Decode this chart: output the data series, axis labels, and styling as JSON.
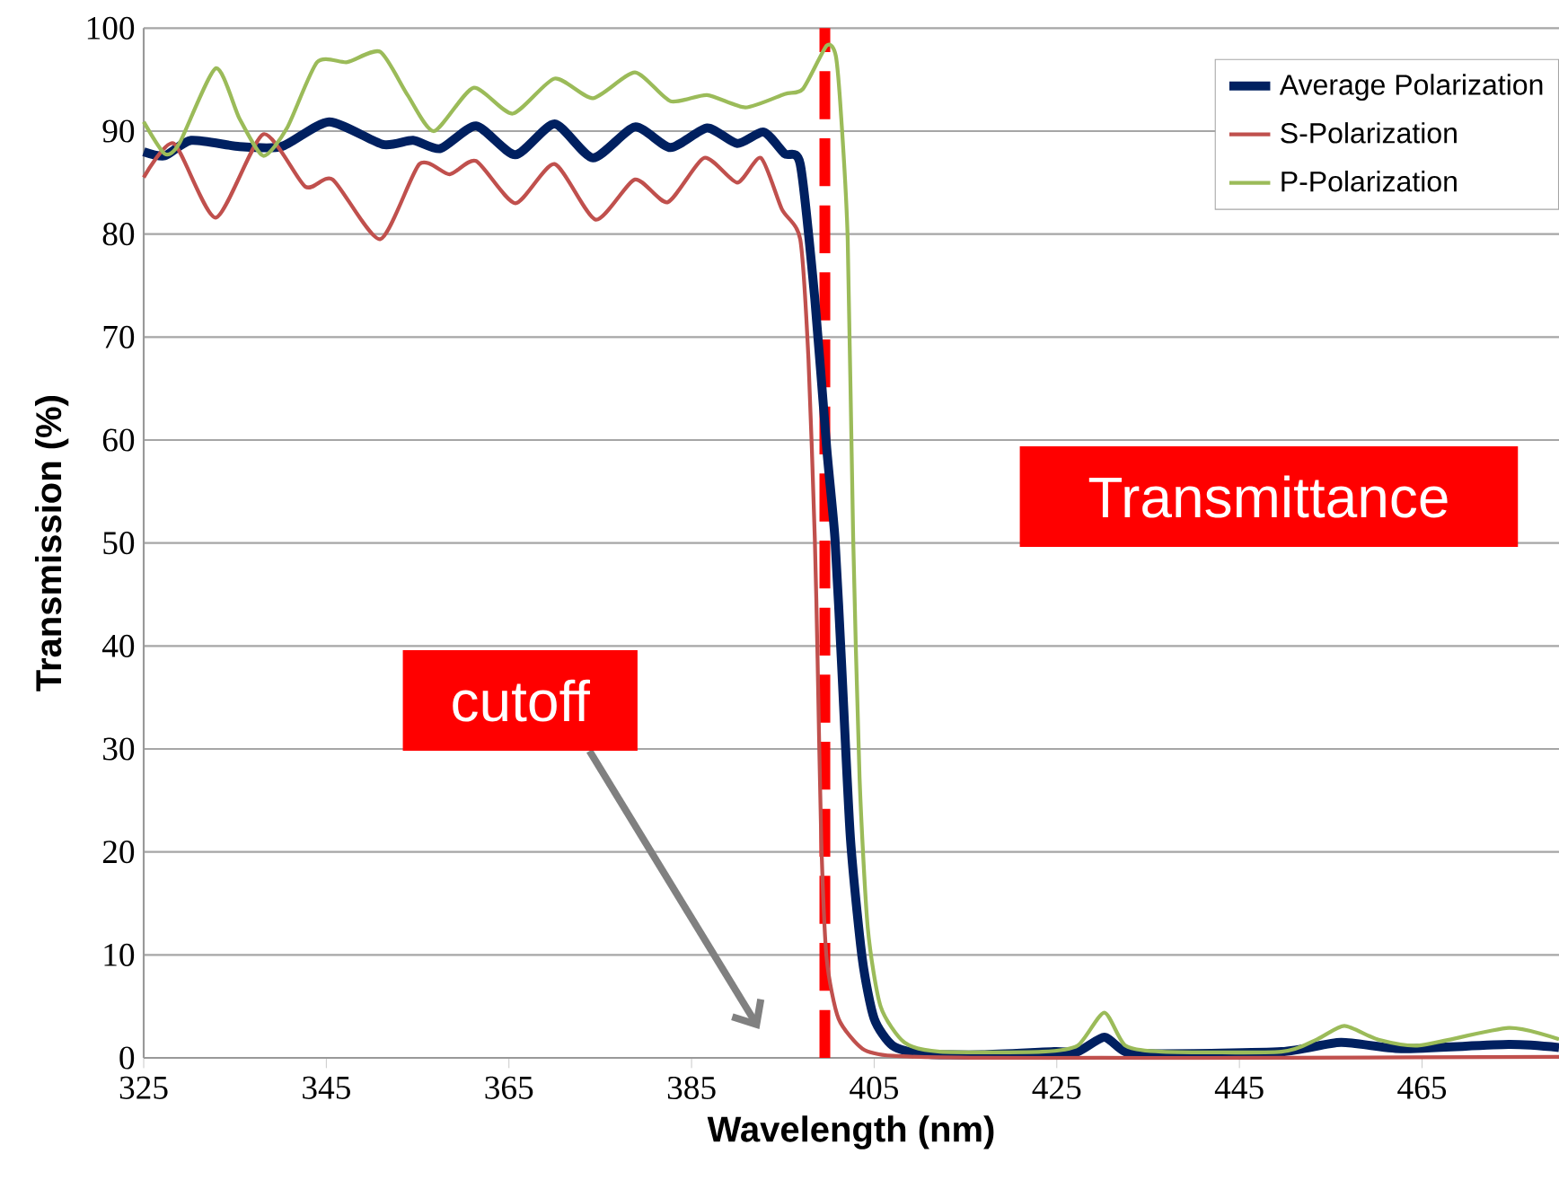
{
  "chart_data": {
    "type": "line",
    "xlabel": "Wavelength (nm)",
    "ylabel": "Transmission (%)",
    "xlim": [
      325,
      480
    ],
    "ylim": [
      0,
      100
    ],
    "xticks": [
      325,
      345,
      365,
      385,
      405,
      425,
      445,
      465
    ],
    "yticks": [
      0,
      10,
      20,
      30,
      40,
      50,
      60,
      70,
      80,
      90,
      100
    ],
    "grid": "y",
    "legend": "top right",
    "series": [
      {
        "name": "Average Polarization",
        "color": "#002060",
        "x": [
          325,
          327.3,
          330.2,
          335.5,
          340.1,
          345.3,
          351.2,
          354.5,
          357.5,
          361.4,
          365.7,
          370,
          374.2,
          378.8,
          382.7,
          386.7,
          390,
          392.9,
          395.2,
          396.9,
          398.5,
          399.8,
          400.7,
          401.4,
          402.4,
          403.7,
          405,
          407,
          410.2,
          416.8,
          424.7,
          427.3,
          430.2,
          432.5,
          436.5,
          449.6,
          456.1,
          462.7,
          474.5,
          480
        ],
        "values": [
          88,
          87.6,
          89.1,
          88.5,
          88.5,
          90.9,
          88.7,
          89.1,
          88.3,
          90.5,
          87.7,
          90.7,
          87.4,
          90.4,
          88.4,
          90.3,
          88.8,
          89.9,
          87.8,
          86.8,
          73.7,
          59.2,
          50.5,
          38.8,
          21.3,
          9.6,
          3.8,
          1.2,
          0.4,
          0.3,
          0.6,
          0.6,
          2,
          0.6,
          0.4,
          0.6,
          1.5,
          0.9,
          1.3,
          1
        ]
      },
      {
        "name": "S-Polarization",
        "color": "#c0504d",
        "x": [
          325,
          328.3,
          332.9,
          338.1,
          342.7,
          345.7,
          350.9,
          355.2,
          358.5,
          361.4,
          365.7,
          370,
          374.5,
          378.8,
          382.4,
          386.4,
          390,
          392.6,
          394.9,
          396.9,
          397.8,
          398.5,
          398.8,
          399.2,
          399.8,
          401.1,
          403.7,
          407,
          416.8,
          429.9,
          449.6,
          480
        ],
        "values": [
          85.5,
          88.8,
          81.6,
          89.7,
          84.6,
          85.3,
          79.5,
          86.8,
          85.8,
          87.1,
          83,
          86.8,
          81.4,
          85.3,
          83.1,
          87.4,
          85,
          87.4,
          82.4,
          79.5,
          67.9,
          50.4,
          38.8,
          21.3,
          9.6,
          3.8,
          0.9,
          0.2,
          0,
          0,
          0,
          0.1
        ]
      },
      {
        "name": "P-Polarization",
        "color": "#9bbb59",
        "x": [
          325,
          327.3,
          328.9,
          332.9,
          335.5,
          338.1,
          340.7,
          344,
          347.3,
          350.9,
          353.9,
          356.8,
          361.1,
          365.4,
          370,
          374.2,
          378.8,
          382.7,
          386.7,
          390.9,
          395.2,
          397.2,
          399.8,
          400.8,
          401.4,
          402.1,
          402.7,
          403.4,
          404.3,
          405.7,
          408.3,
          412.2,
          423.4,
          427.3,
          430.2,
          432.5,
          436.5,
          449.6,
          453.5,
          456.5,
          460.1,
          464.7,
          474.5,
          480
        ],
        "values": [
          90.9,
          87.8,
          88.8,
          96.1,
          91.2,
          87.6,
          90.3,
          96.7,
          96.7,
          97.7,
          93.5,
          90,
          94.2,
          91.7,
          95.1,
          93.2,
          95.7,
          92.9,
          93.5,
          92.3,
          93.6,
          94.1,
          98.3,
          97.3,
          91.2,
          79.5,
          50.5,
          27.2,
          12.6,
          5,
          1.5,
          0.6,
          0.6,
          1.2,
          4.4,
          1.2,
          0.6,
          0.6,
          1.8,
          3.1,
          1.8,
          1.2,
          2.9,
          1.8
        ]
      }
    ],
    "ref_lines": [
      {
        "axis": "x",
        "value": 399.6,
        "color": "#ff0000",
        "line_style": "dashed"
      }
    ],
    "annotations": [
      "Transmittance",
      "cutoff"
    ]
  }
}
